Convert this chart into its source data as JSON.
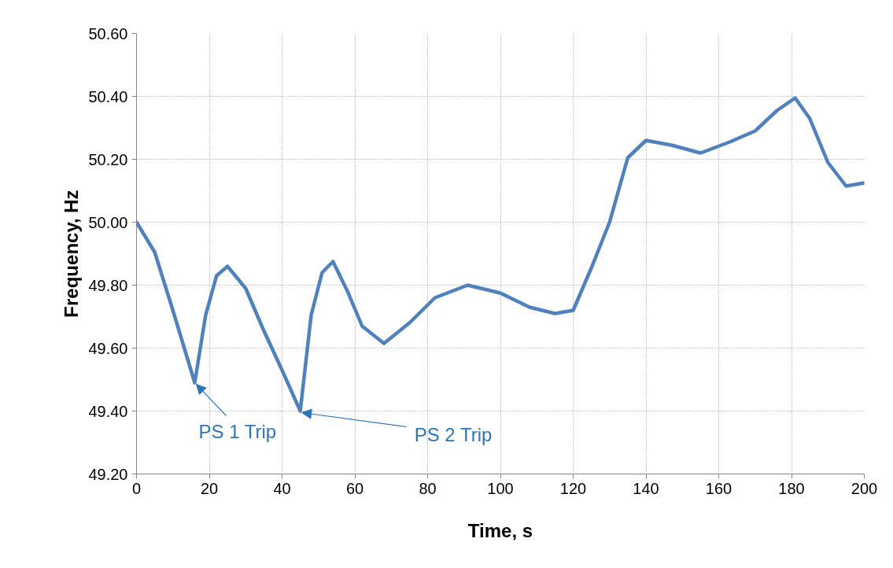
{
  "chart_data": {
    "type": "line",
    "xlabel": "Time, s",
    "ylabel": "Frequency, Hz",
    "x": [
      0,
      5,
      10,
      13,
      16,
      19,
      22,
      25,
      30,
      35,
      40,
      45,
      48,
      51,
      54,
      58,
      62,
      68,
      75,
      82,
      91,
      100,
      108,
      115,
      120,
      125,
      130,
      135,
      140,
      147,
      155,
      163,
      170,
      176,
      181,
      185,
      190,
      195,
      200
    ],
    "series": [
      {
        "color": "#4f81bd",
        "values": [
          50.0,
          49.905,
          49.72,
          49.605,
          49.49,
          49.705,
          49.83,
          49.86,
          49.79,
          49.655,
          49.53,
          49.4,
          49.705,
          49.84,
          49.875,
          49.78,
          49.67,
          49.615,
          49.68,
          49.76,
          49.8,
          49.775,
          49.73,
          49.71,
          49.72,
          49.855,
          50.0,
          50.205,
          50.26,
          50.245,
          50.22,
          50.255,
          50.29,
          50.355,
          50.395,
          50.33,
          50.19,
          50.115,
          50.125
        ]
      }
    ],
    "xlim": [
      0,
      200
    ],
    "xticks": [
      0,
      20,
      40,
      60,
      80,
      100,
      120,
      140,
      160,
      180,
      200
    ],
    "ylim": [
      49.2,
      50.6
    ],
    "yticks": [
      {
        "value": 49.2,
        "label": "49.20"
      },
      {
        "value": 49.4,
        "label": "49.40"
      },
      {
        "value": 49.6,
        "label": "49.60"
      },
      {
        "value": 49.8,
        "label": "49.80"
      },
      {
        "value": 50.0,
        "label": "50.00"
      },
      {
        "value": 50.2,
        "label": "50.20"
      },
      {
        "value": 50.4,
        "label": "50.40"
      },
      {
        "value": 50.6,
        "label": "50.60"
      }
    ],
    "grid": true,
    "marker": "none",
    "line_style": "solid",
    "annotations": [
      {
        "text": "PS 1 Trip",
        "x": 16,
        "y": 49.49
      },
      {
        "text": "PS 2 Trip",
        "x": 45,
        "y": 49.4
      }
    ]
  }
}
